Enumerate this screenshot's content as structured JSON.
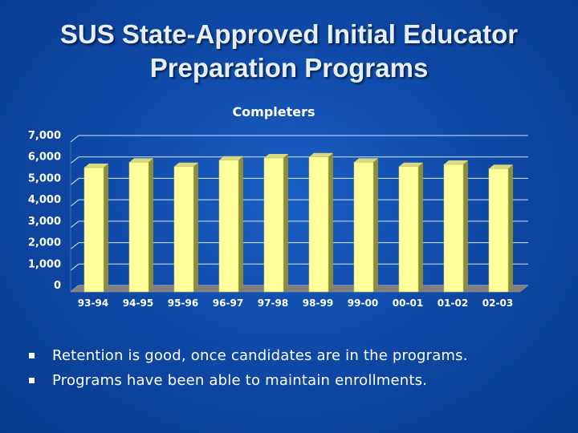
{
  "slide": {
    "title_line1": "SUS State-Approved Initial Educator",
    "title_line2": "Preparation Programs"
  },
  "colors": {
    "background": "#0f4aa8",
    "bar_front": "#ffff9c",
    "bar_side": "#8c8c3a",
    "bar_top": "#d8d880",
    "gridline": "#ffffff",
    "text": "#ffffff"
  },
  "chart_data": {
    "type": "bar",
    "title": "Completers",
    "xlabel": "",
    "ylabel": "",
    "categories": [
      "93-94",
      "94-95",
      "95-96",
      "96-97",
      "97-98",
      "98-99",
      "99-00",
      "00-01",
      "01-02",
      "02-03"
    ],
    "values": [
      5800,
      6050,
      5850,
      6150,
      6250,
      6300,
      6050,
      5850,
      5950,
      5750
    ],
    "ylim": [
      0,
      7000
    ],
    "yticks": [
      "0",
      "1,000",
      "2,000",
      "3,000",
      "4,000",
      "5,000",
      "6,000",
      "7,000"
    ],
    "grid": true,
    "legend": "none",
    "style": "3d-column"
  },
  "bullets": [
    {
      "text": "Retention is good, once candidates are in the programs."
    },
    {
      "text": "Programs have been able to maintain enrollments."
    }
  ]
}
